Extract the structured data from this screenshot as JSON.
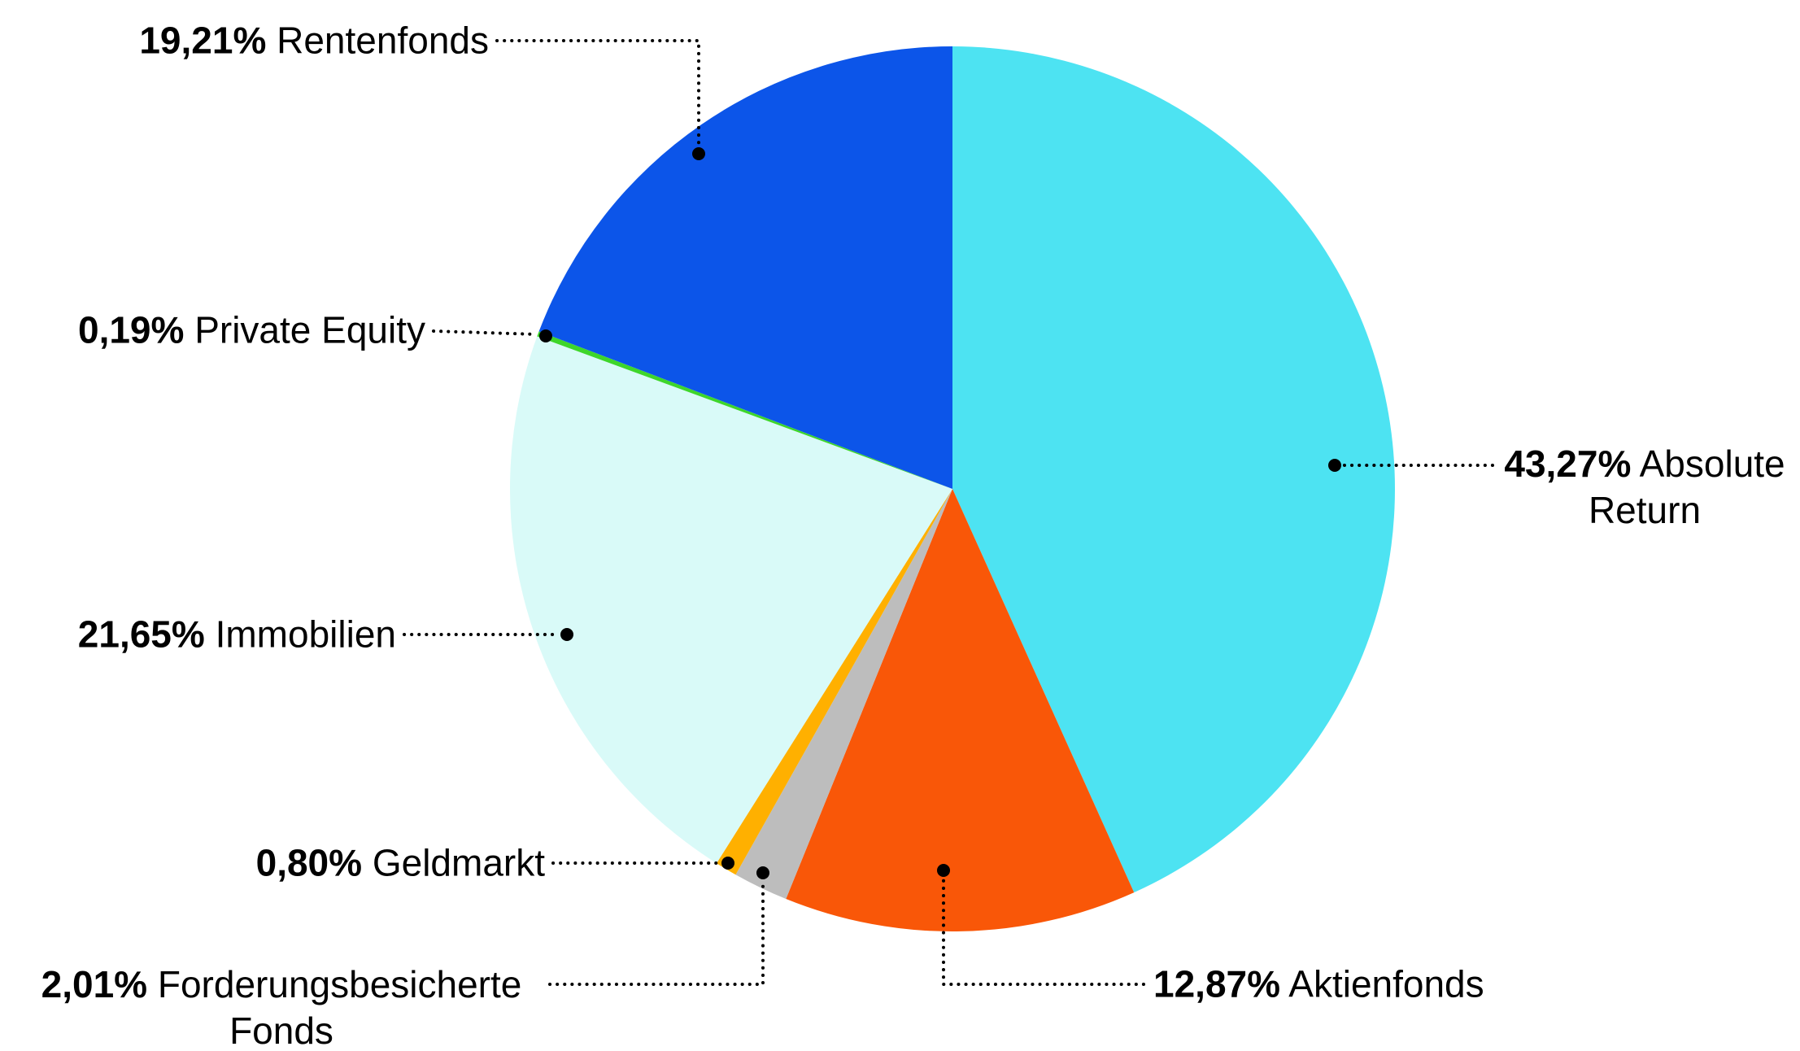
{
  "chart_data": {
    "type": "pie",
    "title": "",
    "start_angle_deg": 0,
    "direction": "clockwise",
    "legend_position": "callout-labels",
    "background_color": "#ffffff",
    "label_text_color": "#000000",
    "leader_line_color": "#000000",
    "leader_line_style": "dotted",
    "slices": [
      {
        "label": "Absolute Return",
        "pct_label": "43,27%",
        "value": 43.27,
        "color": "#4de3f2"
      },
      {
        "label": "Aktienfonds",
        "pct_label": "12,87%",
        "value": 12.87,
        "color": "#f95708"
      },
      {
        "label": "Forderungsbesicherte Fonds",
        "pct_label": "2,01%",
        "value": 2.01,
        "color": "#bdbdbd"
      },
      {
        "label": "Geldmarkt",
        "pct_label": "0,80%",
        "value": 0.8,
        "color": "#ffb000"
      },
      {
        "label": "Immobilien",
        "pct_label": "21,65%",
        "value": 21.65,
        "color": "#d9faf8"
      },
      {
        "label": "Private Equity",
        "pct_label": "0,19%",
        "value": 0.19,
        "color": "#3ed62b"
      },
      {
        "label": "Rentenfonds",
        "pct_label": "19,21%",
        "value": 19.21,
        "color": "#0c55e9"
      }
    ]
  }
}
